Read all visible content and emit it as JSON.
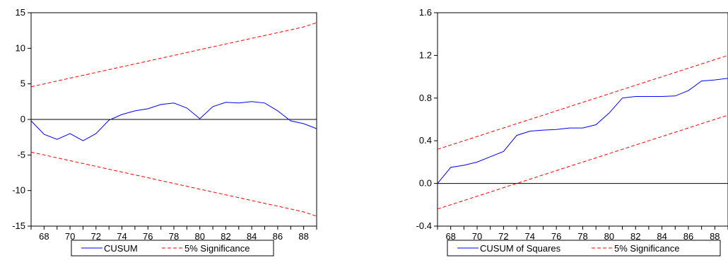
{
  "chart_data": [
    {
      "type": "line",
      "x": [
        67,
        68,
        69,
        70,
        71,
        72,
        73,
        74,
        75,
        76,
        77,
        78,
        79,
        80,
        81,
        82,
        83,
        84,
        85,
        86,
        87,
        88,
        89
      ],
      "xticks": [
        68,
        70,
        72,
        74,
        76,
        78,
        80,
        82,
        84,
        86,
        88
      ],
      "xtick_labels": [
        "68",
        "70",
        "72",
        "74",
        "76",
        "78",
        "80",
        "82",
        "84",
        "86",
        "88"
      ],
      "ylim": [
        -15,
        15
      ],
      "yticks": [
        -15,
        -10,
        -5,
        0,
        5,
        10,
        15
      ],
      "ytick_labels": [
        "-15",
        "-10",
        "-5",
        "0",
        "5",
        "10",
        "15"
      ],
      "zero_line": 0,
      "series": [
        {
          "name": "CUSUM",
          "color": "#0000ff",
          "style": "solid",
          "values": [
            -0.2,
            -2.1,
            -2.8,
            -2.0,
            -3.0,
            -2.0,
            -0.1,
            0.7,
            1.2,
            1.5,
            2.1,
            2.3,
            1.6,
            0.1,
            1.8,
            2.4,
            2.3,
            2.5,
            2.3,
            1.2,
            -0.2,
            -0.6,
            -1.3
          ]
        },
        {
          "name": "5% Significance",
          "color": "#ff0000",
          "style": "dashed",
          "values": [
            4.6,
            5.0,
            5.4,
            5.8,
            6.2,
            6.6,
            7.0,
            7.4,
            7.8,
            8.2,
            8.6,
            9.0,
            9.4,
            9.8,
            10.2,
            10.6,
            11.0,
            11.4,
            11.8,
            12.2,
            12.6,
            13.0,
            13.6
          ]
        },
        {
          "name": "5% Significance",
          "color": "#ff0000",
          "style": "dashed",
          "values": [
            -4.6,
            -5.0,
            -5.4,
            -5.8,
            -6.2,
            -6.6,
            -7.0,
            -7.4,
            -7.8,
            -8.2,
            -8.6,
            -9.0,
            -9.4,
            -9.8,
            -10.2,
            -10.6,
            -11.0,
            -11.4,
            -11.8,
            -12.2,
            -12.6,
            -13.0,
            -13.6
          ]
        }
      ],
      "legend": {
        "position": "bottom",
        "entries": [
          "CUSUM",
          "5% Significance"
        ]
      }
    },
    {
      "type": "line",
      "x": [
        67,
        68,
        69,
        70,
        71,
        72,
        73,
        74,
        75,
        76,
        77,
        78,
        79,
        80,
        81,
        82,
        83,
        84,
        85,
        86,
        87,
        88,
        89
      ],
      "xticks": [
        68,
        70,
        72,
        74,
        76,
        78,
        80,
        82,
        84,
        86,
        88
      ],
      "xtick_labels": [
        "68",
        "70",
        "72",
        "74",
        "76",
        "78",
        "80",
        "82",
        "84",
        "86",
        "88"
      ],
      "ylim": [
        -0.4,
        1.6
      ],
      "yticks": [
        -0.4,
        0.0,
        0.4,
        0.8,
        1.2,
        1.6
      ],
      "ytick_labels": [
        "-0.4",
        "0.0",
        "0.4",
        "0.8",
        "1.2",
        "1.6"
      ],
      "zero_line": 0,
      "series": [
        {
          "name": "CUSUM of Squares",
          "color": "#0000ff",
          "style": "solid",
          "values": [
            0.0,
            0.15,
            0.17,
            0.2,
            0.25,
            0.3,
            0.45,
            0.49,
            0.5,
            0.505,
            0.52,
            0.52,
            0.55,
            0.66,
            0.8,
            0.815,
            0.815,
            0.815,
            0.82,
            0.87,
            0.96,
            0.97,
            0.985
          ]
        },
        {
          "name": "5% Significance",
          "color": "#ff0000",
          "style": "dashed",
          "values": [
            0.32,
            0.36,
            0.4,
            0.44,
            0.48,
            0.52,
            0.56,
            0.6,
            0.64,
            0.68,
            0.72,
            0.76,
            0.8,
            0.84,
            0.88,
            0.92,
            0.96,
            1.0,
            1.04,
            1.08,
            1.12,
            1.16,
            1.2
          ]
        },
        {
          "name": "5% Significance",
          "color": "#ff0000",
          "style": "dashed",
          "values": [
            -0.24,
            -0.2,
            -0.16,
            -0.12,
            -0.08,
            -0.04,
            0.0,
            0.04,
            0.08,
            0.12,
            0.16,
            0.2,
            0.24,
            0.28,
            0.32,
            0.36,
            0.4,
            0.44,
            0.48,
            0.52,
            0.56,
            0.6,
            0.64
          ]
        }
      ],
      "legend": {
        "position": "bottom",
        "entries": [
          "CUSUM of Squares",
          "5% Significance"
        ]
      }
    }
  ]
}
